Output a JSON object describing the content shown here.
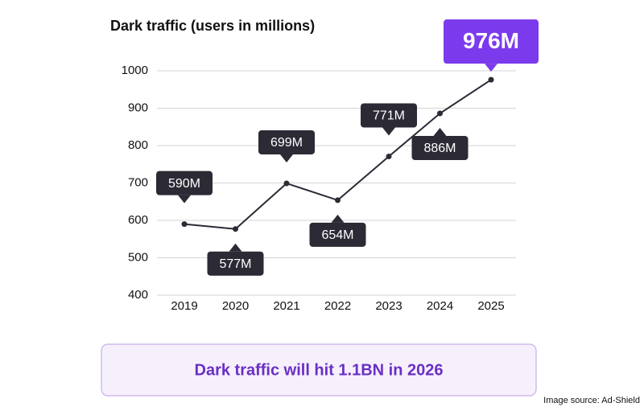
{
  "chart_data": {
    "type": "line",
    "title": "Dark traffic (users in millions)",
    "categories": [
      "2019",
      "2020",
      "2021",
      "2022",
      "2023",
      "2024",
      "2025"
    ],
    "values": [
      590,
      577,
      699,
      654,
      771,
      886,
      976
    ],
    "value_labels": [
      "590M",
      "577M",
      "699M",
      "654M",
      "771M",
      "886M",
      "976M"
    ],
    "color": "#2b2a35",
    "highlight_color": "#7c3aed",
    "ylim": [
      400,
      1000
    ],
    "yticks": [
      400,
      500,
      600,
      700,
      800,
      900,
      1000
    ],
    "grid": true,
    "annotations": [
      "Dark traffic will hit 1.1BN in 2026",
      "Image source: Ad-Shield"
    ]
  }
}
